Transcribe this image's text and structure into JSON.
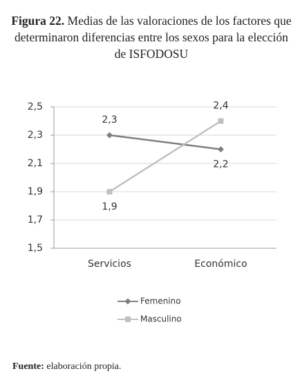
{
  "chart_data": {
    "type": "line",
    "figure_label": "Figura 22.",
    "title": "Medias de las valoraciones de los factores que determinaron diferencias entre los sexos para la elección de ISFODOSU",
    "categories": [
      "Servicios",
      "Económico"
    ],
    "series": [
      {
        "name": "Femenino",
        "color": "#7f7f7f",
        "marker": "diamond",
        "values": [
          2.3,
          2.2
        ],
        "value_labels": [
          "2,3",
          "2,2"
        ]
      },
      {
        "name": "Masculino",
        "color": "#bfbfbf",
        "marker": "square",
        "values": [
          1.9,
          2.4
        ],
        "value_labels": [
          "1,9",
          "2,4"
        ]
      }
    ],
    "ylim": [
      1.5,
      2.5
    ],
    "yticks": [
      {
        "value": 1.5,
        "label": "1,5"
      },
      {
        "value": 1.7,
        "label": "1,7"
      },
      {
        "value": 1.9,
        "label": "1,9"
      },
      {
        "value": 2.1,
        "label": "2,1"
      },
      {
        "value": 2.3,
        "label": "2,3"
      },
      {
        "value": 2.5,
        "label": "2,5"
      }
    ],
    "grid": true,
    "legend": "bottom",
    "source_label": "Fuente:",
    "source": "elaboración propia."
  }
}
